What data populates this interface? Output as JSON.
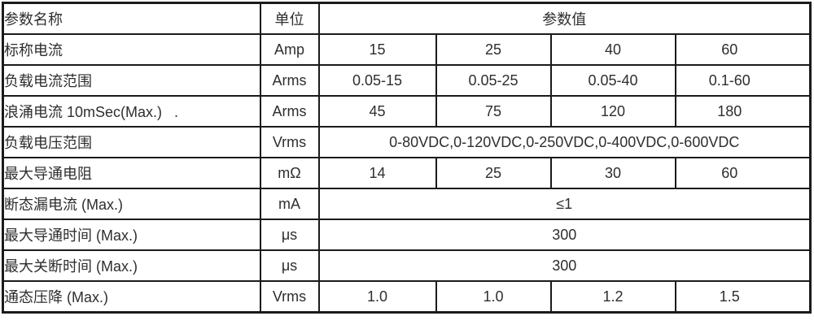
{
  "colors": {
    "border": "#1b1b1b",
    "text": "#2e2e2e",
    "background": "#ffffff"
  },
  "table": {
    "header": {
      "param_name": "参数名称",
      "unit": "单位",
      "param_value": "参数值"
    },
    "rows": [
      {
        "name": "标称电流",
        "unit": "Amp",
        "values": [
          "15",
          "25",
          "40",
          "60"
        ]
      },
      {
        "name": "负载电流范围",
        "unit": "Arms",
        "values": [
          "0.05-15",
          "0.05-25",
          "0.05-40",
          "0.1-60"
        ]
      },
      {
        "name": "浪涌电流 10mSec(Max.)   .",
        "unit": "Arms",
        "values": [
          "45",
          "75",
          "120",
          "180"
        ]
      },
      {
        "name": "负载电压范围",
        "unit": "Vrms",
        "span_value": "0-80VDC,0-120VDC,0-250VDC,0-400VDC,0-600VDC"
      },
      {
        "name": "最大导通电阻",
        "unit": "mΩ",
        "values": [
          "14",
          "25",
          "30",
          "60"
        ]
      },
      {
        "name": "断态漏电流 (Max.)",
        "unit": "mA",
        "span_value": "≤1"
      },
      {
        "name": "最大导通时间 (Max.)",
        "unit": "μs",
        "span_value": "300"
      },
      {
        "name": "最大关断时间 (Max.)",
        "unit": "μs",
        "span_value": "300"
      },
      {
        "name": "通态压降 (Max.)",
        "unit": "Vrms",
        "values": [
          "1.0",
          "1.0",
          "1.2",
          "1.5"
        ]
      }
    ]
  }
}
